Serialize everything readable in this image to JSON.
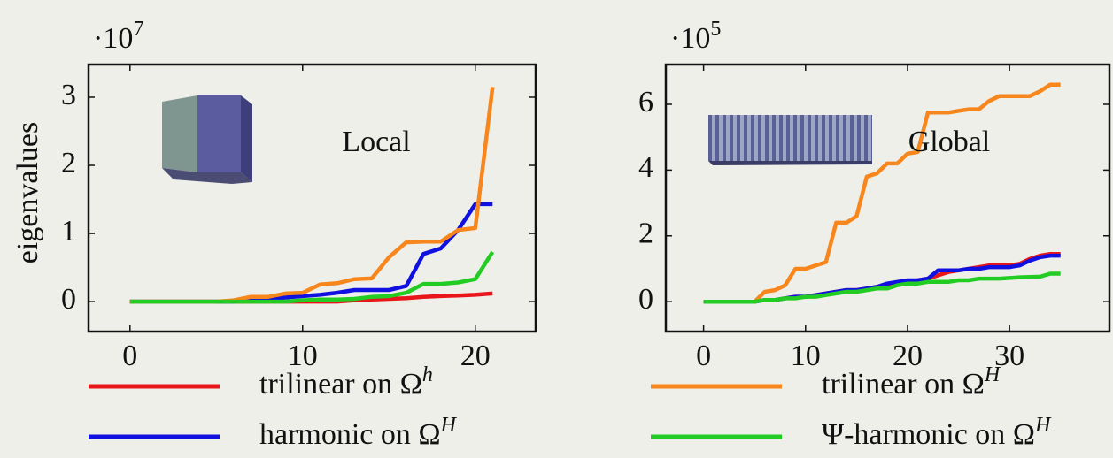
{
  "chart_data": [
    {
      "type": "line",
      "multiplier": {
        "base": "·10",
        "exponent": "7"
      },
      "y_label": "eigenvalues",
      "annotation": "Local",
      "x": [
        0,
        1,
        2,
        3,
        4,
        5,
        6,
        7,
        8,
        9,
        10,
        11,
        12,
        13,
        14,
        15,
        16,
        17,
        18,
        19,
        20,
        21
      ],
      "xlim": [
        -2.4,
        23.5
      ],
      "ylim": [
        -0.44,
        3.48
      ],
      "xticks": [
        0,
        10,
        20
      ],
      "yticks": [
        0,
        1,
        2,
        3
      ],
      "series": [
        {
          "name": "trilinear on Ω",
          "name_superscript": "h",
          "color": "#e8151b",
          "values": [
            0,
            0,
            0,
            0,
            0,
            0,
            0,
            0,
            0,
            0,
            0,
            0,
            0,
            0.02,
            0.03,
            0.04,
            0.05,
            0.07,
            0.08,
            0.09,
            0.1,
            0.12
          ]
        },
        {
          "name": "harmonic on Ω",
          "name_superscript": "H",
          "color": "#1010e0",
          "values": [
            0,
            0,
            0,
            0,
            0,
            0,
            0,
            0.03,
            0.04,
            0.06,
            0.08,
            0.1,
            0.13,
            0.17,
            0.17,
            0.17,
            0.23,
            0.7,
            0.78,
            1.05,
            1.43,
            1.43
          ]
        },
        {
          "name": "trilinear on Ω",
          "name_superscript": "H",
          "color": "#f7861c",
          "values": [
            0,
            0,
            0,
            0,
            0,
            0,
            0.02,
            0.07,
            0.07,
            0.12,
            0.13,
            0.25,
            0.27,
            0.33,
            0.34,
            0.65,
            0.87,
            0.88,
            0.88,
            1.05,
            1.08,
            3.15
          ]
        },
        {
          "name": "Ψ-harmonic on Ω",
          "name_superscript": "H",
          "color": "#22cc22",
          "values": [
            0,
            0,
            0,
            0,
            0,
            0,
            0,
            0,
            0,
            0,
            0.02,
            0.03,
            0.03,
            0.04,
            0.07,
            0.08,
            0.13,
            0.26,
            0.26,
            0.28,
            0.33,
            0.73
          ]
        }
      ]
    },
    {
      "type": "line",
      "multiplier": {
        "base": "·10",
        "exponent": "5"
      },
      "annotation": "Global",
      "x": [
        0,
        1,
        2,
        3,
        4,
        5,
        6,
        7,
        8,
        9,
        10,
        11,
        12,
        13,
        14,
        15,
        16,
        17,
        18,
        19,
        20,
        21,
        22,
        23,
        24,
        25,
        26,
        27,
        28,
        29,
        30,
        31,
        32,
        33,
        34,
        35
      ],
      "xlim": [
        -3.7,
        39.8
      ],
      "ylim": [
        -0.91,
        7.21
      ],
      "xticks": [
        0,
        10,
        20,
        30
      ],
      "yticks": [
        0,
        2,
        4,
        6
      ],
      "series": [
        {
          "color": "#e8151b",
          "values": [
            0,
            0,
            0,
            0,
            0,
            0,
            0.05,
            0.05,
            0.1,
            0.15,
            0.15,
            0.2,
            0.25,
            0.3,
            0.35,
            0.35,
            0.4,
            0.45,
            0.5,
            0.55,
            0.6,
            0.65,
            0.7,
            0.8,
            0.9,
            0.95,
            1.0,
            1.05,
            1.1,
            1.1,
            1.1,
            1.15,
            1.3,
            1.4,
            1.45,
            1.45
          ]
        },
        {
          "color": "#1010e0",
          "values": [
            0,
            0,
            0,
            0,
            0,
            0,
            0.05,
            0.05,
            0.1,
            0.15,
            0.15,
            0.2,
            0.25,
            0.3,
            0.35,
            0.35,
            0.4,
            0.45,
            0.55,
            0.6,
            0.65,
            0.65,
            0.7,
            0.95,
            0.95,
            0.95,
            1.0,
            1.0,
            1.05,
            1.05,
            1.05,
            1.1,
            1.25,
            1.35,
            1.4,
            1.4
          ]
        },
        {
          "color": "#f7861c",
          "values": [
            0,
            0,
            0,
            0,
            0,
            0,
            0.3,
            0.35,
            0.5,
            1.0,
            1.0,
            1.1,
            1.2,
            2.4,
            2.4,
            2.6,
            3.8,
            3.9,
            4.2,
            4.2,
            4.5,
            4.55,
            5.75,
            5.75,
            5.75,
            5.8,
            5.85,
            5.85,
            6.1,
            6.25,
            6.25,
            6.25,
            6.25,
            6.4,
            6.6,
            6.6
          ]
        },
        {
          "color": "#22cc22",
          "values": [
            0,
            0,
            0,
            0,
            0,
            0,
            0.05,
            0.05,
            0.1,
            0.1,
            0.15,
            0.15,
            0.2,
            0.25,
            0.3,
            0.3,
            0.35,
            0.4,
            0.4,
            0.5,
            0.55,
            0.55,
            0.6,
            0.6,
            0.6,
            0.65,
            0.65,
            0.7,
            0.7,
            0.7,
            0.72,
            0.74,
            0.75,
            0.76,
            0.85,
            0.85
          ]
        }
      ]
    }
  ]
}
